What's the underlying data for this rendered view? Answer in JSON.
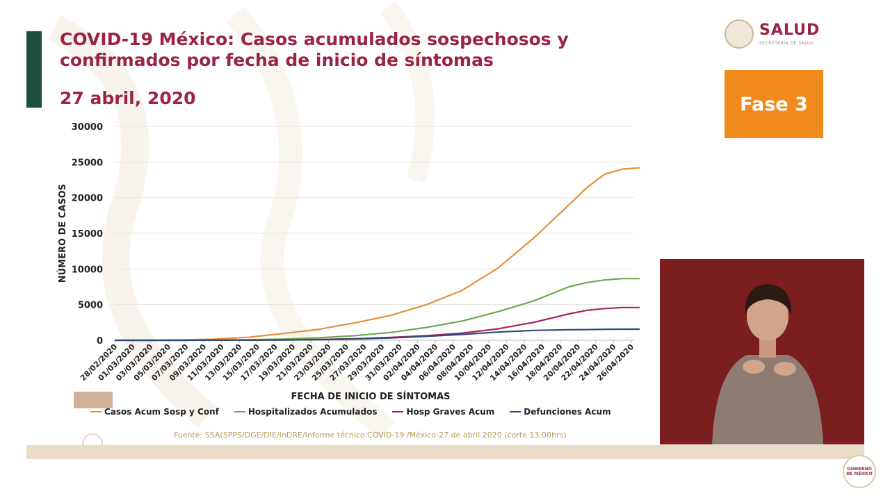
{
  "slide": {
    "title": "COVID-19 México: Casos acumulados sospechosos y confirmados por fecha de inicio de síntomas",
    "subtitle": "27 abril, 2020",
    "fase": "Fase 3",
    "source": "Fuente: SSA(SPPS/DGE/DIE/InDRE/Informe técnico.COVID-19 /México-27 de abril 2020 (corte 13:00hrs)",
    "logo": {
      "name": "SALUD",
      "sub": "SECRETARÍA DE SALUD"
    },
    "corner_logo": "GOBIERNO DE MÉXICO"
  },
  "colors": {
    "title": "#9a2441",
    "accent_bar": "#1f4f41",
    "fase_bg": "#f08a1c",
    "logo": "#9a2441",
    "casos": "#e68e3a",
    "hosp": "#6aa84f",
    "graves": "#a8255a",
    "defunciones": "#2e4d7b"
  },
  "icons": [
    "salud-seal-icon",
    "gobierno-mexico-logo-icon"
  ],
  "chart_data": {
    "type": "line",
    "xlabel": "FECHA DE INICIO DE SÍNTOMAS",
    "ylabel": "NÚMERO DE CASOS",
    "ylim": [
      0,
      30000
    ],
    "yticks": [
      "0",
      "5000",
      "10000",
      "15000",
      "20000",
      "25000",
      "30000"
    ],
    "xlim": [
      "28/02/2020",
      "26/04/2020"
    ],
    "grid": true,
    "legend_position": "bottom",
    "xtick_labels": [
      "28/02/2020",
      "01/03/2020",
      "03/03/2020",
      "05/03/2020",
      "07/03/2020",
      "09/03/2020",
      "11/03/2020",
      "13/03/2020",
      "15/03/2020",
      "17/03/2020",
      "19/03/2020",
      "21/03/2020",
      "23/03/2020",
      "25/03/2020",
      "27/03/2020",
      "29/03/2020",
      "31/03/2020",
      "02/04/2020",
      "04/04/2020",
      "06/04/2020",
      "08/04/2020",
      "10/04/2020",
      "12/04/2020",
      "14/04/2020",
      "16/04/2020",
      "18/04/2020",
      "20/04/2020",
      "22/04/2020",
      "24/04/2020",
      "26/04/2020"
    ],
    "x_points": [
      "28/02/2020",
      "02/03/2020",
      "06/03/2020",
      "10/03/2020",
      "14/03/2020",
      "18/03/2020",
      "22/03/2020",
      "26/03/2020",
      "30/03/2020",
      "03/04/2020",
      "07/04/2020",
      "11/04/2020",
      "15/04/2020",
      "19/04/2020",
      "21/04/2020",
      "23/04/2020",
      "25/04/2020",
      "27/04/2020"
    ],
    "series": [
      {
        "name": "Casos Acum Sosp y Conf",
        "color_key": "casos",
        "values": [
          0,
          10,
          40,
          150,
          420,
          950,
          1550,
          2450,
          3500,
          5000,
          7000,
          10100,
          14300,
          19000,
          21400,
          23300,
          24000,
          24200
        ]
      },
      {
        "name": "Hospitalizados Acumulados",
        "color_key": "hosp",
        "values": [
          0,
          3,
          10,
          30,
          80,
          180,
          350,
          650,
          1100,
          1800,
          2700,
          4000,
          5500,
          7500,
          8100,
          8450,
          8650,
          8650
        ]
      },
      {
        "name": "Hosp Graves Acum",
        "color_key": "graves",
        "values": [
          0,
          0,
          3,
          8,
          20,
          50,
          110,
          220,
          400,
          650,
          1000,
          1600,
          2500,
          3700,
          4200,
          4450,
          4600,
          4600
        ]
      },
      {
        "name": "Defunciones Acum",
        "color_key": "defunciones",
        "values": [
          0,
          0,
          2,
          5,
          15,
          40,
          90,
          180,
          330,
          560,
          820,
          1150,
          1380,
          1480,
          1500,
          1540,
          1560,
          1560
        ]
      }
    ]
  }
}
